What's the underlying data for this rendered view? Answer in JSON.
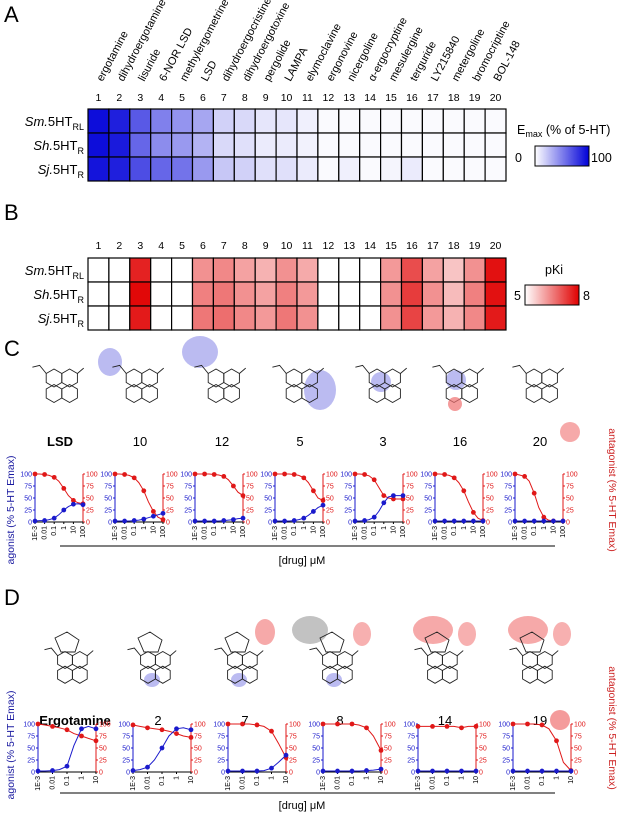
{
  "panels": {
    "A": {
      "letter": "A",
      "drugs": [
        "ergotamine",
        "dihydroergotamine",
        "lisuride",
        "6-NOR LSD",
        "methylergometrine",
        "LSD",
        "dihydroergocristine",
        "dihydroergotoxine",
        "pergolide",
        "LAMPA",
        "elymoclavine",
        "ergonovine",
        "nicergoline",
        "α-ergocryptine",
        "mesulergine",
        "terguride",
        "LY215840",
        "metergoline",
        "bromocriptine",
        "BOL-148"
      ],
      "numbers": [
        "1",
        "2",
        "3",
        "4",
        "5",
        "6",
        "7",
        "8",
        "9",
        "10",
        "11",
        "12",
        "13",
        "14",
        "15",
        "16",
        "17",
        "18",
        "19",
        "20"
      ],
      "rows": [
        {
          "species": "Sm.",
          "rest": "5HT",
          "sub": "RL"
        },
        {
          "species": "Sh.",
          "rest": "5HT",
          "sub": "R"
        },
        {
          "species": "Sj.",
          "rest": "5HT",
          "sub": "R"
        }
      ],
      "legend": {
        "title_main": "E",
        "title_sub": "max",
        "title_rest": " (% of 5-HT)",
        "min": "0",
        "max": "100",
        "color": "#0000d8"
      }
    },
    "B": {
      "letter": "B",
      "numbers": [
        "1",
        "2",
        "3",
        "4",
        "5",
        "6",
        "7",
        "8",
        "9",
        "10",
        "11",
        "12",
        "13",
        "14",
        "15",
        "16",
        "17",
        "18",
        "19",
        "20"
      ],
      "rows": [
        {
          "species": "Sm.",
          "rest": "5HT",
          "sub": "RL"
        },
        {
          "species": "Sh.",
          "rest": "5HT",
          "sub": "R"
        },
        {
          "species": "Sj.",
          "rest": "5HT",
          "sub": "R"
        }
      ],
      "legend": {
        "title": "pKi",
        "min": "5",
        "max": "8",
        "color": "#e00000"
      }
    },
    "C": {
      "letter": "C",
      "compound_labels": [
        "LSD",
        "10",
        "12",
        "5",
        "3",
        "16",
        "20"
      ],
      "yleft": "agonist (% 5-HT Emax)",
      "yright": "antagonist (% 5-HT Emax)",
      "xlabel": "[drug] μM",
      "yticks": [
        "0",
        "25",
        "50",
        "75",
        "100"
      ],
      "xticks": [
        "1E-3",
        "0.01",
        "0.1",
        "1",
        "10",
        "100"
      ]
    },
    "D": {
      "letter": "D",
      "compound_labels": [
        "Ergotamine",
        "2",
        "7",
        "8",
        "14",
        "19"
      ],
      "yleft": "agonist (% 5-HT Emax)",
      "yright": "antagonist (% 5-HT Emax)",
      "xlabel": "[drug] μM",
      "yticks": [
        "0",
        "25",
        "50",
        "75",
        "100"
      ],
      "xticks": [
        "1E-3",
        "0.01",
        "0.1",
        "1",
        "10"
      ]
    }
  },
  "chart_data": [
    {
      "type": "heatmap",
      "panel": "A",
      "categories": [
        "1",
        "2",
        "3",
        "4",
        "5",
        "6",
        "7",
        "8",
        "9",
        "10",
        "11",
        "12",
        "13",
        "14",
        "15",
        "16",
        "17",
        "18",
        "19",
        "20"
      ],
      "series": [
        {
          "name": "Sm.5HTRL",
          "values": [
            95,
            88,
            65,
            50,
            42,
            35,
            18,
            15,
            10,
            10,
            6,
            2,
            2,
            2,
            2,
            2,
            2,
            2,
            2,
            2
          ]
        },
        {
          "name": "Sh.5HTR",
          "values": [
            95,
            90,
            60,
            45,
            40,
            30,
            15,
            12,
            8,
            8,
            5,
            2,
            2,
            2,
            2,
            2,
            2,
            2,
            2,
            2
          ]
        },
        {
          "name": "Sj.5HTR",
          "values": [
            92,
            88,
            70,
            60,
            55,
            40,
            22,
            18,
            12,
            12,
            8,
            2,
            6,
            2,
            4,
            8,
            2,
            2,
            2,
            2
          ]
        }
      ],
      "zlim": [
        0,
        100
      ]
    },
    {
      "type": "heatmap",
      "panel": "B",
      "categories": [
        "1",
        "2",
        "3",
        "4",
        "5",
        "6",
        "7",
        "8",
        "9",
        "10",
        "11",
        "12",
        "13",
        "14",
        "15",
        "16",
        "17",
        "18",
        "19",
        "20"
      ],
      "series": [
        {
          "name": "Sm.5HTRL",
          "values": [
            5,
            5,
            7.6,
            5,
            5,
            6.3,
            6.4,
            6.1,
            5.9,
            6.3,
            6,
            5,
            5,
            5,
            6.2,
            7.1,
            6.1,
            5.7,
            6.3,
            7.8
          ]
        },
        {
          "name": "Sh.5HTR",
          "values": [
            5,
            5,
            7.9,
            5,
            5,
            6.5,
            6.6,
            6.3,
            6.1,
            6.5,
            6.2,
            5,
            5,
            5,
            6.3,
            7.3,
            6.3,
            5.8,
            6.5,
            7.8
          ]
        },
        {
          "name": "Sj.5HTR",
          "values": [
            5,
            5,
            7.7,
            5,
            5,
            6.6,
            6.7,
            6.4,
            6.2,
            6.6,
            6.3,
            5,
            5,
            5,
            6.3,
            7.2,
            6.2,
            5.9,
            6.4,
            7.7
          ]
        }
      ],
      "zlim": [
        5,
        8
      ]
    },
    {
      "type": "line",
      "panel": "C",
      "xscale": "log",
      "xlim": [
        0.001,
        100
      ],
      "ylim": [
        0,
        100
      ],
      "x": [
        0.001,
        0.003,
        0.01,
        0.03,
        0.1,
        0.3,
        1,
        3,
        10,
        30,
        100
      ],
      "subplots": [
        {
          "label": "LSD",
          "agonist": [
            2,
            3,
            3,
            5,
            8,
            15,
            25,
            32,
            37,
            38,
            36
          ],
          "antagonist": [
            100,
            100,
            99,
            97,
            93,
            85,
            70,
            55,
            45,
            40,
            38
          ]
        },
        {
          "label": "10",
          "agonist": [
            2,
            2,
            2,
            2,
            3,
            4,
            6,
            9,
            12,
            15,
            18
          ],
          "antagonist": [
            100,
            100,
            99,
            97,
            92,
            82,
            65,
            42,
            22,
            10,
            5
          ]
        },
        {
          "label": "12",
          "agonist": [
            2,
            2,
            2,
            2,
            2,
            2,
            3,
            4,
            5,
            7,
            8
          ],
          "antagonist": [
            100,
            100,
            100,
            100,
            99,
            98,
            95,
            88,
            75,
            62,
            55
          ]
        },
        {
          "label": "5",
          "agonist": [
            2,
            2,
            2,
            2,
            3,
            5,
            8,
            14,
            22,
            30,
            35
          ],
          "antagonist": [
            100,
            100,
            100,
            100,
            99,
            97,
            92,
            82,
            65,
            50,
            45
          ]
        },
        {
          "label": "3",
          "agonist": [
            2,
            2,
            3,
            5,
            10,
            22,
            40,
            52,
            55,
            55,
            55
          ],
          "antagonist": [
            100,
            100,
            99,
            96,
            88,
            72,
            55,
            50,
            48,
            48,
            48
          ]
        },
        {
          "label": "16",
          "agonist": [
            2,
            2,
            2,
            2,
            2,
            2,
            2,
            2,
            2,
            2,
            2
          ],
          "antagonist": [
            100,
            100,
            99,
            97,
            92,
            82,
            65,
            42,
            20,
            8,
            3
          ]
        },
        {
          "label": "20",
          "agonist": [
            2,
            2,
            2,
            2,
            2,
            2,
            2,
            2,
            2,
            2,
            2
          ],
          "antagonist": [
            100,
            98,
            95,
            85,
            60,
            30,
            10,
            4,
            2,
            2,
            2
          ]
        }
      ]
    },
    {
      "type": "line",
      "panel": "D",
      "xscale": "log",
      "xlim": [
        0.001,
        10
      ],
      "ylim": [
        0,
        100
      ],
      "x": [
        0.001,
        0.003,
        0.01,
        0.03,
        0.1,
        0.3,
        1,
        3,
        10
      ],
      "subplots": [
        {
          "label": "Ergotamine",
          "agonist": [
            2,
            2,
            3,
            5,
            12,
            55,
            90,
            95,
            90
          ],
          "antagonist": [
            100,
            98,
            95,
            92,
            88,
            80,
            75,
            70,
            65
          ]
        },
        {
          "label": "2",
          "agonist": [
            3,
            5,
            10,
            25,
            50,
            75,
            90,
            92,
            88
          ],
          "antagonist": [
            98,
            95,
            92,
            90,
            88,
            85,
            80,
            75,
            72
          ]
        },
        {
          "label": "7",
          "agonist": [
            2,
            2,
            2,
            2,
            2,
            3,
            8,
            20,
            35
          ],
          "antagonist": [
            100,
            100,
            100,
            100,
            98,
            95,
            85,
            60,
            30
          ]
        },
        {
          "label": "8",
          "agonist": [
            2,
            2,
            2,
            2,
            2,
            2,
            3,
            4,
            6
          ],
          "antagonist": [
            100,
            100,
            100,
            100,
            100,
            98,
            92,
            75,
            45
          ]
        },
        {
          "label": "14",
          "agonist": [
            2,
            2,
            2,
            2,
            2,
            2,
            2,
            2,
            2
          ],
          "antagonist": [
            95,
            95,
            95,
            95,
            95,
            95,
            92,
            95,
            95
          ]
        },
        {
          "label": "19",
          "agonist": [
            2,
            2,
            2,
            2,
            2,
            2,
            2,
            2,
            2
          ],
          "antagonist": [
            100,
            100,
            100,
            100,
            98,
            90,
            65,
            20,
            3
          ]
        }
      ]
    }
  ]
}
